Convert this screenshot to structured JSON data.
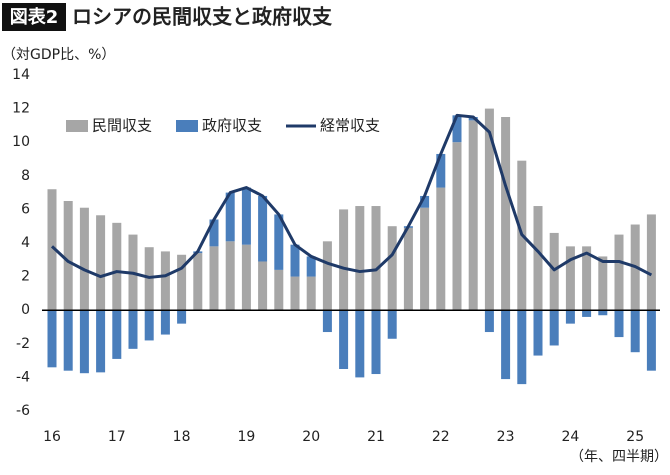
{
  "chart_data": {
    "type": "bar-line",
    "figure_label": "図表2",
    "title": "ロシアの民間収支と政府収支",
    "y_axis_label": "（対GDP比、%）",
    "x_axis_label": "（年、四半期）",
    "categories": [
      "16",
      null,
      null,
      null,
      "17",
      null,
      null,
      null,
      "18",
      null,
      null,
      null,
      "19",
      null,
      null,
      null,
      "20",
      null,
      null,
      null,
      "21",
      null,
      null,
      null,
      "22",
      null,
      null,
      null,
      "23",
      null,
      null,
      null,
      "24",
      null,
      null,
      null,
      "25",
      null
    ],
    "series": [
      {
        "name": "民間収支",
        "color": "#a6a6a6",
        "kind": "bar",
        "values": [
          7.2,
          6.5,
          6.1,
          5.65,
          5.2,
          4.5,
          3.75,
          3.5,
          3.3,
          3.4,
          3.8,
          4.1,
          3.9,
          2.9,
          2.4,
          2.0,
          2.0,
          4.1,
          6.0,
          6.2,
          6.2,
          5.0,
          4.9,
          6.1,
          7.3,
          10.0,
          11.3,
          12.0,
          11.5,
          8.9,
          6.2,
          4.6,
          3.8,
          3.8,
          3.2,
          4.5,
          5.1,
          5.7
        ]
      },
      {
        "name": "政府収支",
        "color": "#4a7ebb",
        "kind": "bar",
        "values": [
          -3.4,
          -3.6,
          -3.75,
          -3.7,
          -2.9,
          -2.3,
          -1.8,
          -1.45,
          -0.8,
          0.1,
          1.6,
          2.9,
          3.4,
          3.9,
          3.3,
          1.9,
          1.2,
          -1.3,
          -3.5,
          -4.0,
          -3.8,
          -1.7,
          0.1,
          0.7,
          2.0,
          1.6,
          0.2,
          -1.3,
          -4.1,
          -4.4,
          -2.7,
          -2.1,
          -0.8,
          -0.4,
          -0.3,
          -1.6,
          -2.5,
          -3.6
        ]
      },
      {
        "name": "経常収支",
        "color": "#1f3a68",
        "kind": "line",
        "values": [
          3.8,
          2.9,
          2.4,
          2.0,
          2.3,
          2.2,
          1.95,
          2.05,
          2.5,
          3.5,
          5.4,
          7.0,
          7.3,
          6.8,
          5.7,
          3.9,
          3.2,
          2.8,
          2.5,
          2.3,
          2.4,
          3.3,
          5.0,
          6.8,
          9.3,
          11.6,
          11.5,
          10.6,
          7.4,
          4.5,
          3.5,
          2.4,
          3.0,
          3.4,
          2.9,
          2.9,
          2.6,
          2.1
        ]
      }
    ],
    "ylim": [
      -6,
      14
    ],
    "yticks": [
      -6,
      -4,
      -2,
      0,
      2,
      4,
      6,
      8,
      10,
      12,
      14
    ],
    "grid": false,
    "legend": "top-left"
  }
}
